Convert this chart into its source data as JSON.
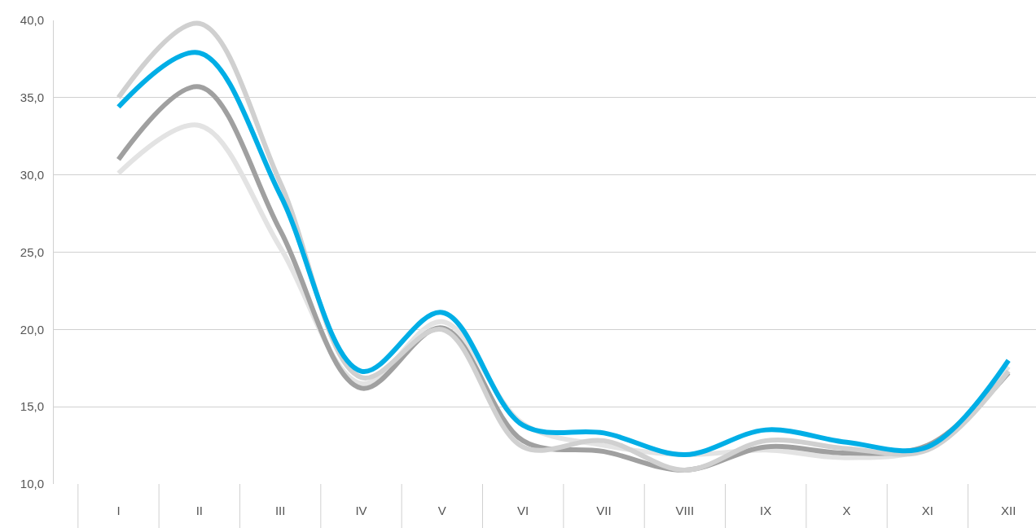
{
  "chart_data": {
    "type": "line",
    "categories": [
      "I",
      "II",
      "III",
      "IV",
      "V",
      "VI",
      "VII",
      "VIII",
      "IX",
      "X",
      "XI",
      "XII"
    ],
    "series": [
      {
        "color": "#e3e3e3",
        "values": [
          30.1,
          33.2,
          25.3,
          16.5,
          20.5,
          13.9,
          12.5,
          11.9,
          12.2,
          11.7,
          12.4,
          17.6
        ]
      },
      {
        "color": "#a0a0a0",
        "values": [
          31.0,
          35.7,
          26.4,
          16.2,
          20.1,
          12.8,
          12.1,
          10.9,
          12.4,
          12.0,
          12.5,
          17.2
        ]
      },
      {
        "color": "#d0d0d0",
        "values": [
          35.0,
          39.8,
          29.5,
          16.9,
          20.0,
          12.4,
          12.8,
          10.9,
          12.8,
          12.3,
          12.2,
          17.3
        ]
      },
      {
        "color": "#00aee6",
        "values": [
          34.4,
          37.9,
          28.7,
          17.3,
          21.1,
          13.8,
          13.3,
          11.9,
          13.5,
          12.7,
          12.4,
          18.0
        ]
      }
    ],
    "ylim": [
      10,
      40
    ],
    "yticks": [
      {
        "value": 10,
        "label": "10,0"
      },
      {
        "value": 15,
        "label": "15,0"
      },
      {
        "value": 20,
        "label": "20,0"
      },
      {
        "value": 25,
        "label": "25,0"
      },
      {
        "value": 30,
        "label": "30,0"
      },
      {
        "value": 35,
        "label": "35,0"
      },
      {
        "value": 40,
        "label": "40,0"
      }
    ],
    "grid": "y",
    "marker": "none",
    "line_style": "solid"
  }
}
